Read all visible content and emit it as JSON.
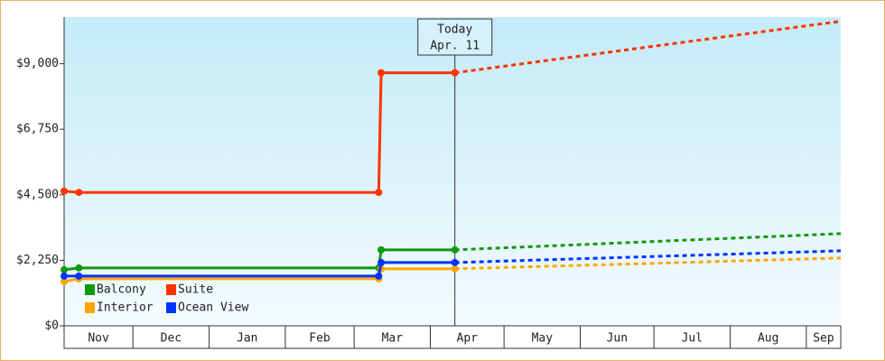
{
  "chart_data": {
    "type": "line",
    "xlim": [
      2,
      318
    ],
    "xticks": [
      {
        "value": 0,
        "label": "Nov"
      },
      {
        "value": 30,
        "label": "Dec"
      },
      {
        "value": 61,
        "label": "Jan"
      },
      {
        "value": 92,
        "label": "Feb"
      },
      {
        "value": 120,
        "label": "Mar"
      },
      {
        "value": 151,
        "label": "Apr"
      },
      {
        "value": 181,
        "label": "May"
      },
      {
        "value": 212,
        "label": "Jun"
      },
      {
        "value": 242,
        "label": "Jul"
      },
      {
        "value": 273,
        "label": "Aug"
      },
      {
        "value": 304,
        "label": "Sep"
      }
    ],
    "ylim": [
      0,
      10600
    ],
    "yticks": [
      {
        "value": 0,
        "label": "$0"
      },
      {
        "value": 2250,
        "label": "$2,250"
      },
      {
        "value": 4500,
        "label": "$4,500"
      },
      {
        "value": 6750,
        "label": "$6,750"
      },
      {
        "value": 9000,
        "label": "$9,000"
      }
    ],
    "annotation": {
      "lines": [
        "Today",
        "Apr. 11"
      ],
      "x": 161
    },
    "series": [
      {
        "name": "Balcony",
        "color": "#119911",
        "x": [
          2,
          8,
          130,
          131,
          161
        ],
        "values": [
          1924,
          1986,
          1986,
          2607,
          2607
        ],
        "forecast": {
          "x": [
            161,
            318
          ],
          "values": [
            2607,
            3166
          ]
        }
      },
      {
        "name": "Suite",
        "color": "#ff3300",
        "x": [
          2,
          8,
          130,
          131,
          161
        ],
        "values": [
          4624,
          4580,
          4580,
          8690,
          8690
        ],
        "forecast": {
          "x": [
            161,
            318
          ],
          "values": [
            8690,
            10459
          ]
        }
      },
      {
        "name": "Interior",
        "color": "#ffa500",
        "x": [
          2,
          8,
          130,
          131,
          161
        ],
        "values": [
          1521,
          1614,
          1614,
          1955,
          1955
        ],
        "forecast": {
          "x": [
            161,
            318
          ],
          "values": [
            1955,
            2328
          ]
        }
      },
      {
        "name": "Ocean View",
        "color": "#0033ff",
        "x": [
          2,
          8,
          130,
          131,
          161
        ],
        "values": [
          1707,
          1707,
          1707,
          2172,
          2172
        ],
        "forecast": {
          "x": [
            161,
            318
          ],
          "values": [
            2172,
            2576
          ]
        }
      }
    ]
  }
}
